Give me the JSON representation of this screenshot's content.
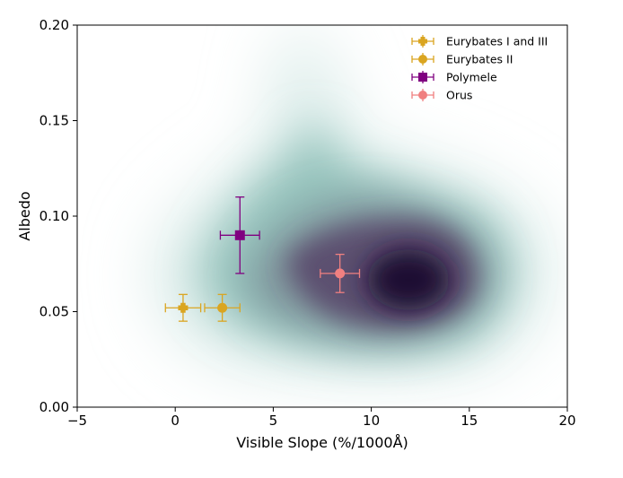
{
  "chart_data": {
    "type": "scatter",
    "xlabel": "Visible Slope (%/1000Å)",
    "ylabel": "Albedo",
    "xlim": [
      -5,
      20
    ],
    "ylim": [
      0.0,
      0.2
    ],
    "xticks": [
      -5,
      0,
      5,
      10,
      15,
      20
    ],
    "xtick_labels": [
      "−5",
      "0",
      "5",
      "10",
      "15",
      "20"
    ],
    "yticks": [
      0.0,
      0.05,
      0.1,
      0.15,
      0.2
    ],
    "ytick_labels": [
      "0.00",
      "0.05",
      "0.10",
      "0.15",
      "0.20"
    ],
    "legend_position": "top-right",
    "background": "density contour of the sample (dark purple core near slope 12, albedo 0.067, fading to teal)",
    "series": [
      {
        "name": "Eurybates I and III",
        "marker": "cross",
        "color": "#DAA520",
        "points": [
          {
            "x": 0.4,
            "y": 0.052,
            "xerr": 0.9,
            "yerr": 0.007
          }
        ]
      },
      {
        "name": "Eurybates II",
        "marker": "circle",
        "color": "#DAA520",
        "points": [
          {
            "x": 2.4,
            "y": 0.052,
            "xerr": 0.9,
            "yerr": 0.007
          }
        ]
      },
      {
        "name": "Polymele",
        "marker": "square",
        "color": "#800080",
        "points": [
          {
            "x": 3.3,
            "y": 0.09,
            "xerr": 1.0,
            "yerr": 0.02
          }
        ]
      },
      {
        "name": "Orus",
        "marker": "circle",
        "color": "#F08080",
        "points": [
          {
            "x": 8.4,
            "y": 0.07,
            "xerr": 1.0,
            "yerr": 0.01
          }
        ]
      }
    ]
  }
}
